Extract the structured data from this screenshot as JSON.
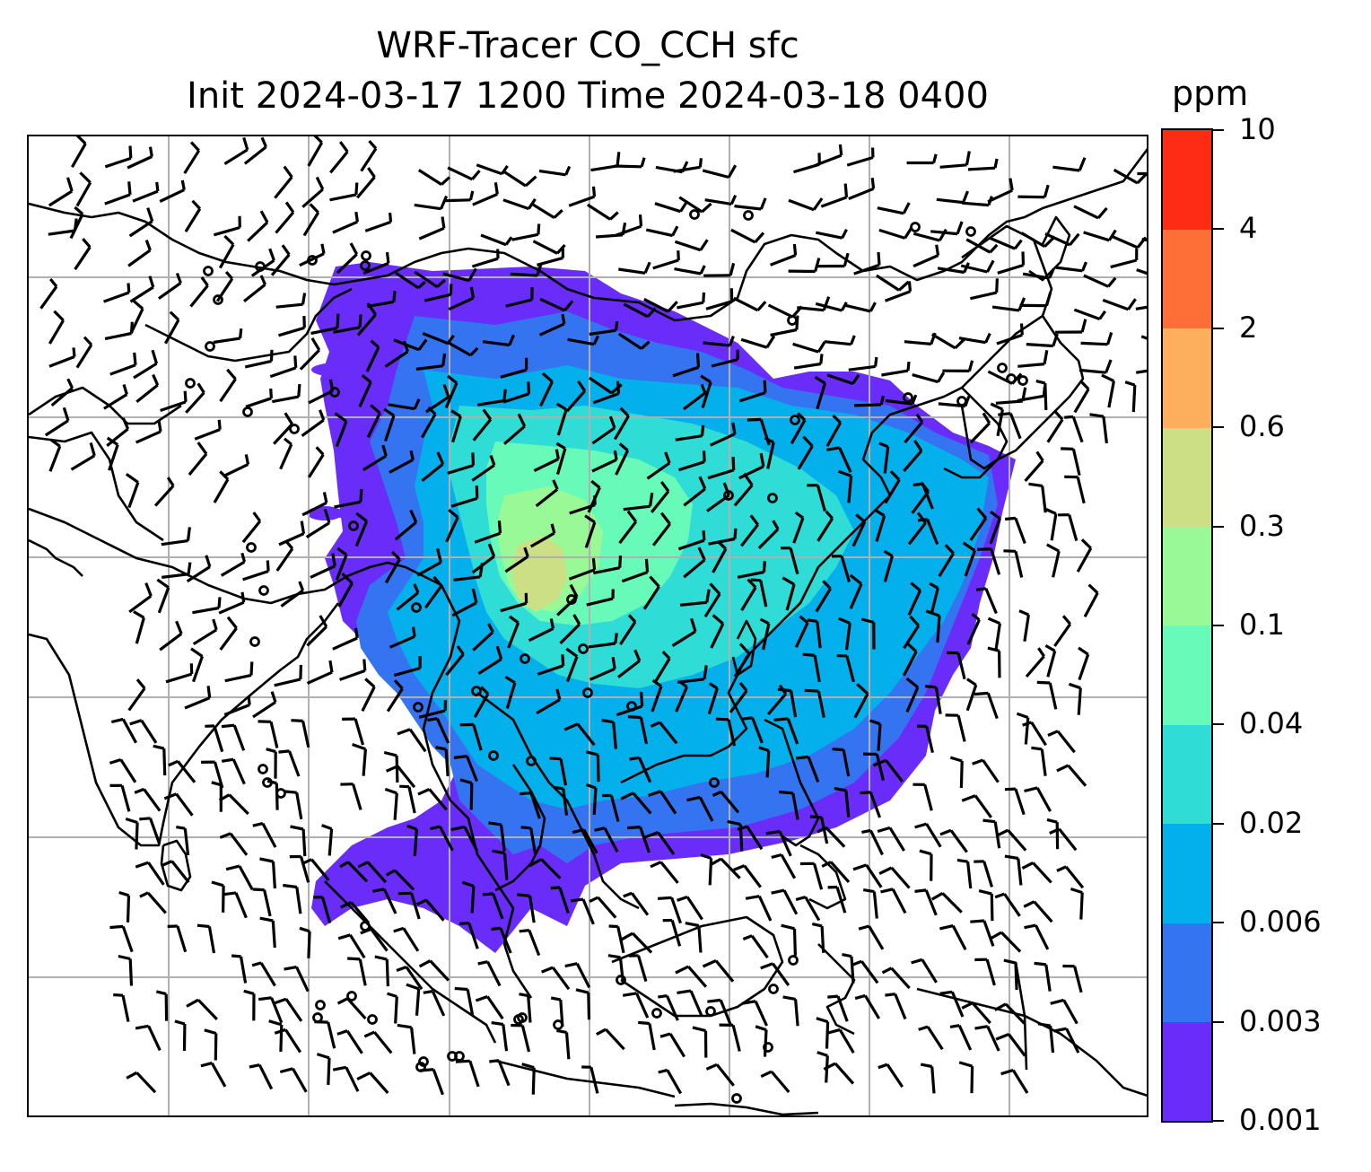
{
  "figure": {
    "title_line1": "WRF-Tracer CO_CCH sfc",
    "title_line2": "Init 2024-03-17 1200 Time 2024-03-18 0400"
  },
  "colorbar": {
    "unit": "ppm",
    "tick_labels": [
      "0.001",
      "0.003",
      "0.006",
      "0.02",
      "0.04",
      "0.1",
      "0.3",
      "0.6",
      "2",
      "4",
      "10"
    ],
    "colors": [
      "#6a2cf8",
      "#3474f0",
      "#03b0eb",
      "#2fdcd6",
      "#68fab8",
      "#9af997",
      "#cddf84",
      "#fdaf5e",
      "#fe6f38",
      "#fe2c15"
    ]
  },
  "map": {
    "colors": {
      "background": "#ffffff",
      "coastline": "#000000",
      "gridline": "#b0b0b0",
      "wind_barb": "#000000"
    },
    "layers": [
      "co-concentration-fill",
      "gridlines",
      "coastlines",
      "wind-barbs",
      "calm-circles"
    ]
  }
}
